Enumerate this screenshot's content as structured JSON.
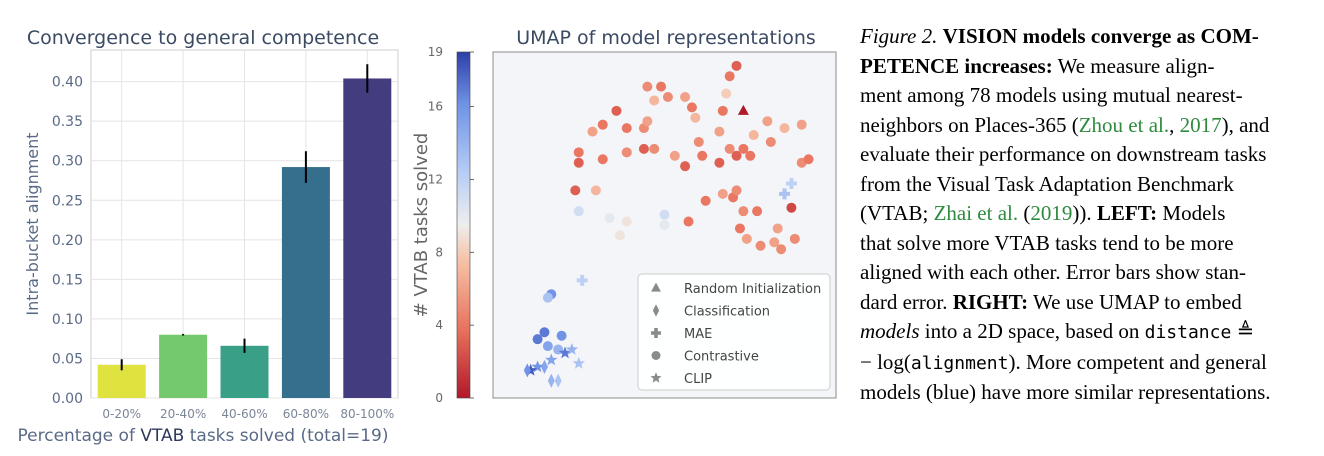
{
  "chart_data": [
    {
      "type": "bar",
      "title": "Convergence to general competence",
      "xlabel_prefix": "Percentage of ",
      "xlabel_emph": "VTAB",
      "xlabel_suffix": " tasks solved (total=19)",
      "ylabel": "Intra-bucket alignment",
      "categories": [
        "0-20%",
        "20-40%",
        "40-60%",
        "60-80%",
        "80-100%"
      ],
      "values": [
        0.042,
        0.08,
        0.066,
        0.292,
        0.404
      ],
      "errors": [
        0.007,
        0.001,
        0.009,
        0.02,
        0.018
      ],
      "colors": [
        "#dfe23f",
        "#75c96d",
        "#3a9f87",
        "#356f8d",
        "#433d80"
      ],
      "ylim": [
        0,
        0.44
      ],
      "yticks": [
        "0.00",
        "0.05",
        "0.10",
        "0.15",
        "0.20",
        "0.25",
        "0.30",
        "0.35",
        "0.40"
      ],
      "grid": true
    },
    {
      "type": "scatter",
      "title": "UMAP of model representations",
      "colorbar_label": "# VTAB tasks solved",
      "colorbar_ticks": [
        "0",
        "4",
        "8",
        "12",
        "16",
        "19"
      ],
      "cmap_range": [
        0,
        19
      ],
      "legend_position": "bottom-right",
      "legend": [
        {
          "marker": "triangle",
          "label": "Random Initialization"
        },
        {
          "marker": "diamond",
          "label": "Classification"
        },
        {
          "marker": "plus",
          "label": "MAE"
        },
        {
          "marker": "circle",
          "label": "Contrastive"
        },
        {
          "marker": "star",
          "label": "CLIP"
        }
      ],
      "points": [
        {
          "x": 0.2,
          "y": 0.18,
          "m": "circle",
          "c": 16
        },
        {
          "x": 0.15,
          "y": 0.19,
          "m": "circle",
          "c": 17
        },
        {
          "x": 0.13,
          "y": 0.17,
          "m": "circle",
          "c": 17
        },
        {
          "x": 0.16,
          "y": 0.15,
          "m": "circle",
          "c": 15
        },
        {
          "x": 0.19,
          "y": 0.14,
          "m": "circle",
          "c": 14
        },
        {
          "x": 0.17,
          "y": 0.3,
          "m": "circle",
          "c": 16
        },
        {
          "x": 0.16,
          "y": 0.29,
          "m": "circle",
          "c": 13
        },
        {
          "x": 0.13,
          "y": 0.09,
          "m": "star",
          "c": 16
        },
        {
          "x": 0.17,
          "y": 0.11,
          "m": "star",
          "c": 15
        },
        {
          "x": 0.21,
          "y": 0.13,
          "m": "star",
          "c": 17
        },
        {
          "x": 0.23,
          "y": 0.14,
          "m": "star",
          "c": 14
        },
        {
          "x": 0.25,
          "y": 0.1,
          "m": "star",
          "c": 13
        },
        {
          "x": 0.11,
          "y": 0.08,
          "m": "star",
          "c": 18
        },
        {
          "x": 0.1,
          "y": 0.08,
          "m": "diamond",
          "c": 16
        },
        {
          "x": 0.15,
          "y": 0.09,
          "m": "diamond",
          "c": 15
        },
        {
          "x": 0.17,
          "y": 0.05,
          "m": "diamond",
          "c": 14
        },
        {
          "x": 0.19,
          "y": 0.05,
          "m": "diamond",
          "c": 13
        },
        {
          "x": 0.26,
          "y": 0.34,
          "m": "plus",
          "c": 12
        },
        {
          "x": 0.85,
          "y": 0.59,
          "m": "plus",
          "c": 13
        },
        {
          "x": 0.87,
          "y": 0.62,
          "m": "plus",
          "c": 12
        },
        {
          "x": 0.73,
          "y": 0.83,
          "m": "triangle",
          "c": 0
        },
        {
          "x": 0.25,
          "y": 0.54,
          "m": "circle",
          "c": 11
        },
        {
          "x": 0.34,
          "y": 0.52,
          "m": "circle",
          "c": 10
        },
        {
          "x": 0.39,
          "y": 0.51,
          "m": "circle",
          "c": 9
        },
        {
          "x": 0.37,
          "y": 0.47,
          "m": "circle",
          "c": 9
        },
        {
          "x": 0.5,
          "y": 0.5,
          "m": "circle",
          "c": 10
        },
        {
          "x": 0.5,
          "y": 0.53,
          "m": "circle",
          "c": 11
        },
        {
          "x": 0.24,
          "y": 0.6,
          "m": "circle",
          "c": 3
        },
        {
          "x": 0.3,
          "y": 0.6,
          "m": "circle",
          "c": 7
        },
        {
          "x": 0.25,
          "y": 0.68,
          "m": "circle",
          "c": 3
        },
        {
          "x": 0.32,
          "y": 0.69,
          "m": "circle",
          "c": 4
        },
        {
          "x": 0.39,
          "y": 0.71,
          "m": "circle",
          "c": 5
        },
        {
          "x": 0.44,
          "y": 0.72,
          "m": "circle",
          "c": 3
        },
        {
          "x": 0.47,
          "y": 0.72,
          "m": "circle",
          "c": 5
        },
        {
          "x": 0.53,
          "y": 0.7,
          "m": "circle",
          "c": 6
        },
        {
          "x": 0.56,
          "y": 0.67,
          "m": "circle",
          "c": 3
        },
        {
          "x": 0.25,
          "y": 0.71,
          "m": "circle",
          "c": 4
        },
        {
          "x": 0.29,
          "y": 0.77,
          "m": "circle",
          "c": 6
        },
        {
          "x": 0.32,
          "y": 0.79,
          "m": "circle",
          "c": 4
        },
        {
          "x": 0.36,
          "y": 0.83,
          "m": "circle",
          "c": 3
        },
        {
          "x": 0.39,
          "y": 0.78,
          "m": "circle",
          "c": 4
        },
        {
          "x": 0.44,
          "y": 0.78,
          "m": "circle",
          "c": 5
        },
        {
          "x": 0.45,
          "y": 0.8,
          "m": "circle",
          "c": 6
        },
        {
          "x": 0.47,
          "y": 0.86,
          "m": "circle",
          "c": 7
        },
        {
          "x": 0.45,
          "y": 0.9,
          "m": "circle",
          "c": 5
        },
        {
          "x": 0.49,
          "y": 0.9,
          "m": "circle",
          "c": 4
        },
        {
          "x": 0.51,
          "y": 0.87,
          "m": "circle",
          "c": 5
        },
        {
          "x": 0.56,
          "y": 0.87,
          "m": "circle",
          "c": 6
        },
        {
          "x": 0.58,
          "y": 0.84,
          "m": "circle",
          "c": 4
        },
        {
          "x": 0.59,
          "y": 0.81,
          "m": "circle",
          "c": 7
        },
        {
          "x": 0.6,
          "y": 0.74,
          "m": "circle",
          "c": 5
        },
        {
          "x": 0.61,
          "y": 0.7,
          "m": "circle",
          "c": 4
        },
        {
          "x": 0.66,
          "y": 0.68,
          "m": "circle",
          "c": 3
        },
        {
          "x": 0.69,
          "y": 0.72,
          "m": "circle",
          "c": 5
        },
        {
          "x": 0.66,
          "y": 0.77,
          "m": "circle",
          "c": 6
        },
        {
          "x": 0.67,
          "y": 0.83,
          "m": "circle",
          "c": 4
        },
        {
          "x": 0.69,
          "y": 0.93,
          "m": "circle",
          "c": 4
        },
        {
          "x": 0.71,
          "y": 0.96,
          "m": "circle",
          "c": 3
        },
        {
          "x": 0.68,
          "y": 0.88,
          "m": "circle",
          "c": 8
        },
        {
          "x": 0.71,
          "y": 0.7,
          "m": "circle",
          "c": 3
        },
        {
          "x": 0.73,
          "y": 0.72,
          "m": "circle",
          "c": 4
        },
        {
          "x": 0.75,
          "y": 0.7,
          "m": "circle",
          "c": 4
        },
        {
          "x": 0.76,
          "y": 0.76,
          "m": "circle",
          "c": 7
        },
        {
          "x": 0.81,
          "y": 0.74,
          "m": "circle",
          "c": 5
        },
        {
          "x": 0.8,
          "y": 0.8,
          "m": "circle",
          "c": 6
        },
        {
          "x": 0.85,
          "y": 0.78,
          "m": "circle",
          "c": 7
        },
        {
          "x": 0.9,
          "y": 0.79,
          "m": "circle",
          "c": 6
        },
        {
          "x": 0.9,
          "y": 0.68,
          "m": "circle",
          "c": 5
        },
        {
          "x": 0.92,
          "y": 0.69,
          "m": "circle",
          "c": 4
        },
        {
          "x": 0.62,
          "y": 0.57,
          "m": "circle",
          "c": 4
        },
        {
          "x": 0.67,
          "y": 0.59,
          "m": "circle",
          "c": 6
        },
        {
          "x": 0.7,
          "y": 0.58,
          "m": "circle",
          "c": 4
        },
        {
          "x": 0.71,
          "y": 0.6,
          "m": "circle",
          "c": 5
        },
        {
          "x": 0.73,
          "y": 0.54,
          "m": "circle",
          "c": 5
        },
        {
          "x": 0.77,
          "y": 0.54,
          "m": "circle",
          "c": 4
        },
        {
          "x": 0.72,
          "y": 0.49,
          "m": "circle",
          "c": 4
        },
        {
          "x": 0.74,
          "y": 0.46,
          "m": "circle",
          "c": 6
        },
        {
          "x": 0.78,
          "y": 0.44,
          "m": "circle",
          "c": 5
        },
        {
          "x": 0.82,
          "y": 0.45,
          "m": "circle",
          "c": 6
        },
        {
          "x": 0.84,
          "y": 0.43,
          "m": "circle",
          "c": 5
        },
        {
          "x": 0.87,
          "y": 0.55,
          "m": "circle",
          "c": 2
        },
        {
          "x": 0.83,
          "y": 0.49,
          "m": "circle",
          "c": 6
        },
        {
          "x": 0.88,
          "y": 0.46,
          "m": "circle",
          "c": 5
        },
        {
          "x": 0.57,
          "y": 0.51,
          "m": "circle",
          "c": 4
        }
      ]
    }
  ],
  "caption": {
    "fig_label": "Figure 2.",
    "bold_title": "VISION models converge as COMPETENCE increases:",
    "lines": [
      {
        "segments": [
          {
            "t": "Figure 2. ",
            "style": "fig-label"
          },
          {
            "t": "VISION models converge as COM-",
            "style": "b"
          }
        ]
      },
      {
        "segments": [
          {
            "t": "PETENCE increases:",
            "style": "b"
          },
          {
            "t": "  We measure align-",
            "style": ""
          }
        ]
      },
      {
        "segments": [
          {
            "t": "ment among 78 models using mutual nearest-",
            "style": ""
          }
        ]
      },
      {
        "segments": [
          {
            "t": "neighbors on Places-365 (",
            "style": ""
          },
          {
            "t": "Zhou et al.",
            "style": "cite"
          },
          {
            "t": ", ",
            "style": ""
          },
          {
            "t": "2017",
            "style": "cite"
          },
          {
            "t": "), and",
            "style": ""
          }
        ]
      },
      {
        "segments": [
          {
            "t": "evaluate their performance on downstream tasks",
            "style": ""
          }
        ]
      },
      {
        "segments": [
          {
            "t": "from the Visual Task Adaptation Benchmark",
            "style": ""
          }
        ]
      },
      {
        "segments": [
          {
            "t": "(VTAB; ",
            "style": ""
          },
          {
            "t": "Zhai et al.",
            "style": "cite"
          },
          {
            "t": " (",
            "style": ""
          },
          {
            "t": "2019",
            "style": "cite"
          },
          {
            "t": ")).  ",
            "style": ""
          },
          {
            "t": "LEFT:",
            "style": "b"
          },
          {
            "t": " Models",
            "style": ""
          }
        ]
      },
      {
        "segments": [
          {
            "t": "that solve more VTAB tasks tend to be more",
            "style": ""
          }
        ]
      },
      {
        "segments": [
          {
            "t": "aligned with each other. Error bars show stan-",
            "style": ""
          }
        ]
      },
      {
        "segments": [
          {
            "t": "dard error. ",
            "style": ""
          },
          {
            "t": "RIGHT:",
            "style": "b"
          },
          {
            "t": " We use UMAP to embed",
            "style": ""
          }
        ]
      },
      {
        "segments": [
          {
            "t": "models",
            "style": "em"
          },
          {
            "t": " into a 2D space, based on ",
            "style": ""
          },
          {
            "t": "distance",
            "style": "mono"
          },
          {
            "t": " ≜",
            "style": ""
          }
        ]
      },
      {
        "segments": [
          {
            "t": "− log(",
            "style": ""
          },
          {
            "t": "alignment",
            "style": "mono"
          },
          {
            "t": "). More competent and general",
            "style": ""
          }
        ]
      },
      {
        "segments": [
          {
            "t": "models (blue) have more similar representations.",
            "style": ""
          }
        ]
      }
    ]
  }
}
